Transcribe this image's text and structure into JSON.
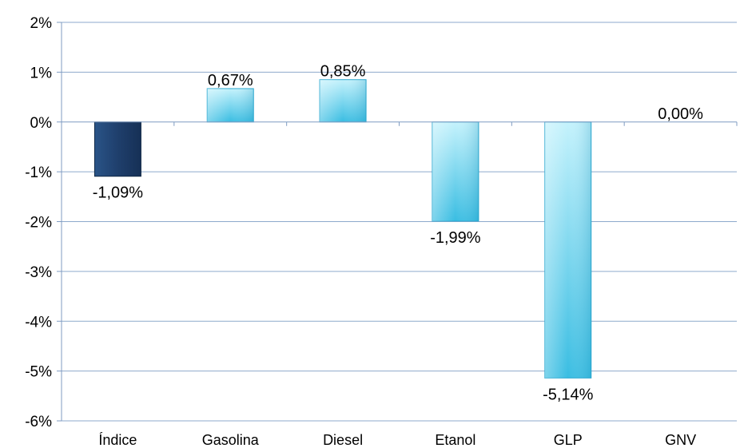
{
  "chart_data": {
    "type": "bar",
    "title": "",
    "xlabel": "",
    "ylabel": "",
    "categories": [
      "Índice",
      "Gasolina",
      "Diesel",
      "Etanol",
      "GLP",
      "GNV"
    ],
    "values": [
      -1.09,
      0.67,
      0.85,
      -1.99,
      -5.14,
      0.0
    ],
    "data_labels": [
      "-1,09%",
      "0,67%",
      "0,85%",
      "-1,99%",
      "-5,14%",
      "0,00%"
    ],
    "ylim": [
      -6,
      2
    ],
    "yticks": [
      2,
      1,
      0,
      -1,
      -2,
      -3,
      -4,
      -5,
      -6
    ],
    "ytick_labels": [
      "2%",
      "1%",
      "0%",
      "-1%",
      "-2%",
      "-3%",
      "-4%",
      "-5%",
      "-6%"
    ],
    "grid": true,
    "legend": "none",
    "colors": {
      "highlight": "#1e3d66",
      "bar_light": "#9fe6f7",
      "bar_mid": "#43c1e3",
      "gridline": "#8eaacc"
    }
  }
}
